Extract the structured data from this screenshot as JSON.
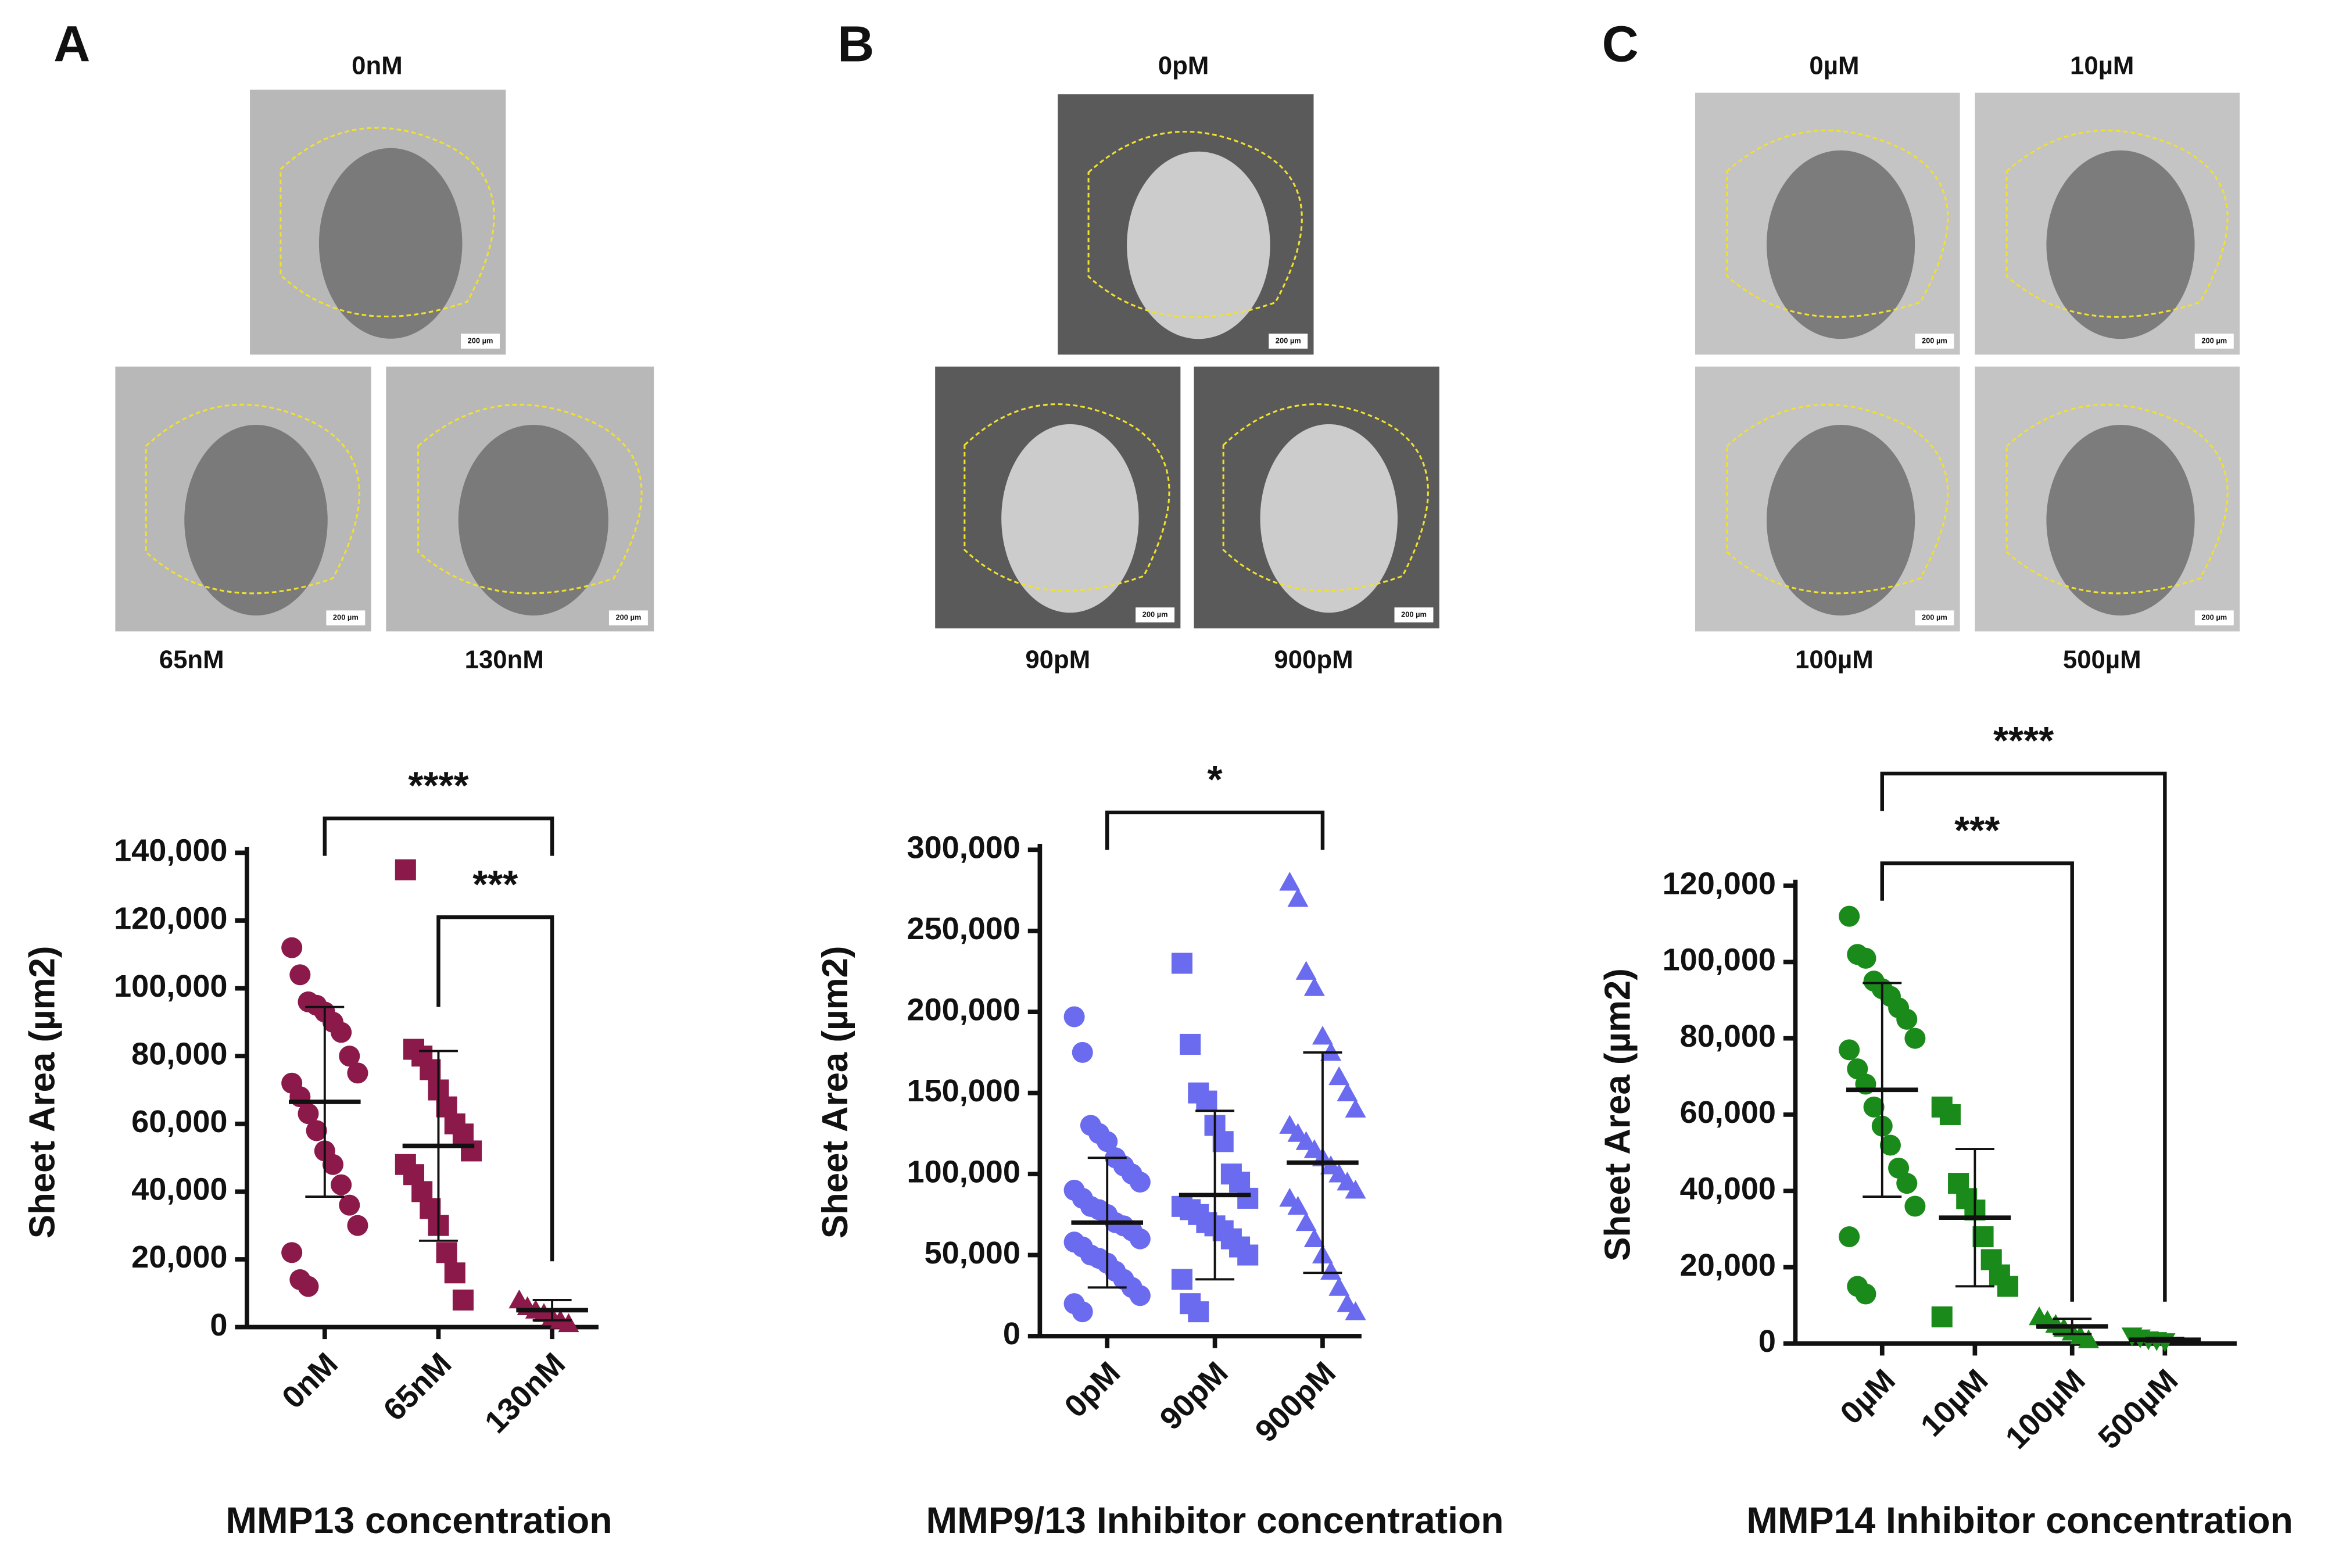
{
  "panels": [
    {
      "letter": "A",
      "images": [
        "0nM",
        "65nM",
        "130nM"
      ]
    },
    {
      "letter": "B",
      "images": [
        "0pM",
        "90pM",
        "900pM"
      ]
    },
    {
      "letter": "C",
      "images": [
        "0µM",
        "10µM",
        "100µM",
        "500µM"
      ]
    }
  ],
  "scale_bar": "200 µm",
  "chart_data": [
    {
      "type": "strip",
      "y_label": "Sheet Area (µm2)",
      "x_label": "MMP13 concentration",
      "categories": [
        "0nM",
        "65nM",
        "130nM"
      ],
      "color": "#8b1a4a",
      "markers": [
        "circle",
        "square",
        "triangle"
      ],
      "values": [
        [
          112000,
          104000,
          96000,
          95000,
          93000,
          90000,
          87000,
          80000,
          75000,
          72000,
          68000,
          63000,
          58000,
          52000,
          48000,
          42000,
          36000,
          30000,
          22000,
          14000,
          12000
        ],
        [
          135000,
          82000,
          80000,
          76000,
          70000,
          65000,
          60000,
          57000,
          52000,
          48000,
          45000,
          40000,
          35000,
          30000,
          22000,
          16000,
          8000
        ],
        [
          8000,
          6000,
          5000,
          4000,
          3000,
          2000,
          1000
        ]
      ],
      "means": [
        66500,
        53500,
        5000
      ],
      "sds": [
        28000,
        28000,
        3000
      ],
      "ylim": [
        0,
        140000
      ],
      "yticks": [
        0,
        {
          "value": 20000,
          "label": "20,000"
        },
        {
          "value": 40000,
          "label": "40,000"
        },
        {
          "value": 60000,
          "label": "60,000"
        },
        {
          "value": 80000,
          "label": "80,000"
        },
        {
          "value": 100000,
          "label": "100,000"
        },
        {
          "value": 120000,
          "label": "120,000"
        },
        {
          "value": 140000,
          "label": "140,000"
        }
      ],
      "significance": [
        {
          "from": 0,
          "to": 2,
          "label": "****"
        },
        {
          "from": 1,
          "to": 2,
          "label": "***"
        }
      ]
    },
    {
      "type": "strip",
      "y_label": "Sheet Area (µm2)",
      "x_label": "MMP9/13 Inhibitor concentration",
      "categories": [
        "0pM",
        "90pM",
        "900pM"
      ],
      "color": "#6b6bef",
      "markers": [
        "circle",
        "square",
        "triangle"
      ],
      "values": [
        [
          197000,
          175000,
          130000,
          125000,
          120000,
          110000,
          105000,
          100000,
          95000,
          90000,
          85000,
          80000,
          78000,
          75000,
          70000,
          68000,
          65000,
          60000,
          58000,
          55000,
          50000,
          48000,
          45000,
          40000,
          35000,
          30000,
          25000,
          20000,
          15000
        ],
        [
          230000,
          180000,
          150000,
          145000,
          130000,
          120000,
          100000,
          95000,
          85000,
          80000,
          78000,
          75000,
          70000,
          68000,
          65000,
          60000,
          55000,
          50000,
          35000,
          20000,
          15000
        ],
        [
          280000,
          270000,
          225000,
          215000,
          185000,
          175000,
          160000,
          150000,
          140000,
          130000,
          125000,
          120000,
          115000,
          110000,
          105000,
          100000,
          95000,
          90000,
          85000,
          80000,
          70000,
          60000,
          50000,
          40000,
          30000,
          20000,
          15000
        ]
      ],
      "means": [
        70000,
        87000,
        107000
      ],
      "sds": [
        40000,
        52000,
        68000
      ],
      "ylim": [
        0,
        300000
      ],
      "yticks": [
        0,
        {
          "value": 50000,
          "label": "50,000"
        },
        {
          "value": 100000,
          "label": "100,000"
        },
        {
          "value": 150000,
          "label": "150,000"
        },
        {
          "value": 200000,
          "label": "200,000"
        },
        {
          "value": 250000,
          "label": "250,000"
        },
        {
          "value": 300000,
          "label": "300,000"
        }
      ],
      "significance": [
        {
          "from": 0,
          "to": 2,
          "label": "*"
        }
      ]
    },
    {
      "type": "strip",
      "y_label": "Sheet Area (µm2)",
      "x_label": "MMP14 Inhibitor concentration",
      "categories": [
        "0µM",
        "10µM",
        "100µM",
        "500µM"
      ],
      "color": "#1a8a1a",
      "markers": [
        "circle",
        "square",
        "triangle",
        "triangle-down"
      ],
      "values": [
        [
          112000,
          102000,
          101000,
          95000,
          93000,
          91000,
          88000,
          85000,
          80000,
          77000,
          72000,
          68000,
          62000,
          57000,
          52000,
          46000,
          42000,
          36000,
          28000,
          15000,
          13000
        ],
        [
          62000,
          60000,
          42000,
          38000,
          35000,
          28000,
          22000,
          18000,
          15000,
          7000
        ],
        [
          7000,
          6000,
          5000,
          4000,
          3000,
          2000,
          1000
        ],
        [
          2000,
          1500,
          1000,
          800,
          500
        ]
      ],
      "means": [
        66500,
        33000,
        4500,
        1000
      ],
      "sds": [
        28000,
        18000,
        2000,
        500
      ],
      "ylim": [
        0,
        120000
      ],
      "yticks": [
        0,
        {
          "value": 20000,
          "label": "20,000"
        },
        {
          "value": 40000,
          "label": "40,000"
        },
        {
          "value": 60000,
          "label": "60,000"
        },
        {
          "value": 80000,
          "label": "80,000"
        },
        {
          "value": 100000,
          "label": "100,000"
        },
        {
          "value": 120000,
          "label": "120,000"
        }
      ],
      "significance": [
        {
          "from": 0,
          "to": 2,
          "label": "***"
        },
        {
          "from": 0,
          "to": 3,
          "label": "****"
        }
      ]
    }
  ]
}
